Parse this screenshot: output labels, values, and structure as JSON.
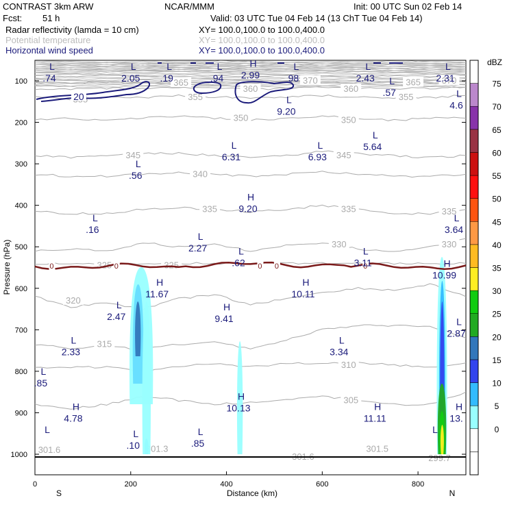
{
  "header": {
    "model": "CONTRAST  3km ARW",
    "org": "NCAR/MMM",
    "init": "Init: 00 UTC Sun 02 Feb 14",
    "fcst_label": "Fcst:",
    "fcst_value": "51 h",
    "valid": "Valid: 03 UTC Tue 04 Feb 14 (13 ChT Tue 04 Feb 14)",
    "fields": [
      {
        "name": "Radar reflectivity (lamda = 10 cm)",
        "xy": "XY= 100.0,100.0 to 100.0,400.0",
        "color": "#000000"
      },
      {
        "name": "Potential temperature",
        "xy": "XY= 100.0,100.0 to 100.0,400.0",
        "color": "#bbbbbb"
      },
      {
        "name": "Horizontal wind speed",
        "xy": "XY= 100.0,100.0 to 100.0,400.0",
        "color": "#1a1a7a"
      }
    ]
  },
  "chart_data": {
    "type": "cross-section",
    "xlabel": "Distance (km)",
    "ylabel": "Pressure (hPa)",
    "xlim": [
      0,
      900
    ],
    "ylim": [
      1000,
      50
    ],
    "x_ticks": [
      "0",
      "200",
      "400",
      "600",
      "800"
    ],
    "x_tick_values": [
      0,
      200,
      400,
      600,
      800
    ],
    "y_ticks": [
      "100",
      "200",
      "300",
      "400",
      "500",
      "600",
      "700",
      "800",
      "900",
      "1000"
    ],
    "y_tick_values": [
      100,
      200,
      300,
      400,
      500,
      600,
      700,
      800,
      900,
      1000
    ],
    "endpoint_labels": {
      "left": "S",
      "right": "N"
    },
    "colorbar": {
      "unit": "dBZ",
      "levels": [
        "0",
        "5",
        "10",
        "15",
        "20",
        "25",
        "30",
        "35",
        "40",
        "45",
        "50",
        "55",
        "60",
        "65",
        "70",
        "75"
      ],
      "colors": [
        "#ffffff",
        "#ffffff",
        "#99ffff",
        "#33bbff",
        "#3344ee",
        "#3377bb",
        "#22aa22",
        "#11cc11",
        "#ffee22",
        "#ffbb22",
        "#ff9944",
        "#ff5511",
        "#ff1111",
        "#cc1111",
        "#993344",
        "#8833aa",
        "#bb88cc",
        "#ffffff"
      ]
    },
    "theta_contours": {
      "color": "#aaaaaa",
      "lines": [
        {
          "label": "320",
          "p": [
            620,
            645,
            635,
            650,
            625,
            615,
            640,
            625,
            610,
            600,
            605,
            590,
            620
          ]
        },
        {
          "label": "315",
          "p": [
            735,
            745,
            740,
            748,
            735,
            730,
            745,
            725,
            700,
            690,
            690,
            690,
            720
          ]
        },
        {
          "label": "310",
          "p": [
            790,
            790,
            790,
            800,
            790,
            780,
            790,
            780,
            780,
            780,
            785,
            790,
            780
          ]
        },
        {
          "label": "305",
          "p": [
            880,
            890,
            880,
            860,
            870,
            880,
            875,
            870,
            860,
            870,
            880,
            880,
            850
          ]
        },
        {
          "label": "325",
          "p": [
            540,
            540,
            540,
            540,
            540,
            540,
            540,
            540,
            540,
            540,
            540,
            540,
            540
          ]
        },
        {
          "label": "330",
          "p": [
            510,
            505,
            510,
            490,
            500,
            495,
            510,
            495,
            490,
            505,
            510,
            500,
            480
          ]
        },
        {
          "label": "335",
          "p": [
            415,
            420,
            420,
            410,
            405,
            410,
            415,
            410,
            400,
            410,
            420,
            420,
            410
          ]
        },
        {
          "label": "340",
          "p": [
            325,
            330,
            330,
            325,
            320,
            325,
            330,
            325,
            320,
            325,
            330,
            330,
            325
          ]
        },
        {
          "label": "345",
          "p": [
            280,
            285,
            280,
            275,
            275,
            280,
            285,
            280,
            270,
            275,
            280,
            285,
            280
          ]
        },
        {
          "label": "350",
          "p": [
            195,
            190,
            195,
            190,
            185,
            190,
            195,
            190,
            185,
            190,
            195,
            190,
            190
          ]
        },
        {
          "label": "355",
          "p": [
            140,
            145,
            140,
            140,
            135,
            140,
            140,
            140,
            135,
            140,
            140,
            140,
            135
          ]
        },
        {
          "label": "360",
          "p": [
            120,
            120,
            118,
            118,
            115,
            118,
            120,
            118,
            115,
            118,
            118,
            118,
            115
          ]
        },
        {
          "label": "365",
          "p": [
            105,
            105,
            104,
            104,
            103,
            104,
            105,
            104,
            103,
            104,
            104,
            104,
            103
          ]
        }
      ],
      "x_nodes": [
        0,
        75,
        150,
        225,
        300,
        375,
        450,
        525,
        600,
        675,
        750,
        825,
        900
      ],
      "labels": [
        {
          "text": "320",
          "x": 80,
          "p": 630
        },
        {
          "text": "315",
          "x": 145,
          "p": 735
        },
        {
          "text": "315",
          "x": 222,
          "p": 755
        },
        {
          "text": "310",
          "x": 655,
          "p": 785
        },
        {
          "text": "305",
          "x": 660,
          "p": 870
        },
        {
          "text": "325",
          "x": 145,
          "p": 545
        },
        {
          "text": "325",
          "x": 285,
          "p": 545
        },
        {
          "text": "330",
          "x": 635,
          "p": 495
        },
        {
          "text": "330",
          "x": 865,
          "p": 495
        },
        {
          "text": "335",
          "x": 365,
          "p": 410
        },
        {
          "text": "335",
          "x": 655,
          "p": 410
        },
        {
          "text": "335",
          "x": 865,
          "p": 415
        },
        {
          "text": "340",
          "x": 345,
          "p": 325
        },
        {
          "text": "345",
          "x": 205,
          "p": 280
        },
        {
          "text": "345",
          "x": 645,
          "p": 280
        },
        {
          "text": "350",
          "x": 430,
          "p": 190
        },
        {
          "text": "350",
          "x": 655,
          "p": 195
        },
        {
          "text": "355",
          "x": 95,
          "p": 145
        },
        {
          "text": "355",
          "x": 335,
          "p": 140
        },
        {
          "text": "355",
          "x": 775,
          "p": 140
        },
        {
          "text": "360",
          "x": 450,
          "p": 120
        },
        {
          "text": "360",
          "x": 660,
          "p": 120
        },
        {
          "text": "365",
          "x": 305,
          "p": 105
        },
        {
          "text": "365",
          "x": 790,
          "p": 104
        },
        {
          "text": "370",
          "x": 575,
          "p": 100
        },
        {
          "text": "370",
          "x": 865,
          "p": 100
        },
        {
          "text": "301.6",
          "x": 30,
          "p": 990
        },
        {
          "text": "301.3",
          "x": 255,
          "p": 988
        },
        {
          "text": "301.6",
          "x": 560,
          "p": 1007
        },
        {
          "text": "301.5",
          "x": 715,
          "p": 988
        },
        {
          "text": "299.7",
          "x": 845,
          "p": 1010
        }
      ]
    },
    "freezing_level": {
      "label": "0",
      "p": 545,
      "color": "#7a1a1a",
      "label_x": [
        35,
        170,
        470,
        505,
        690
      ]
    },
    "wind_contours": {
      "color": "#1a1a7a",
      "label": "20",
      "labelled": {
        "x": 90,
        "p": 140
      }
    },
    "wind_extrema": [
      {
        "type": "L",
        "value": ".74",
        "x": 30,
        "p": 85
      },
      {
        "type": "L",
        "value": "2.05",
        "x": 200,
        "p": 85
      },
      {
        "type": "L",
        "value": ".19",
        "x": 275,
        "p": 85
      },
      {
        "type": "L",
        "value": ".94",
        "x": 380,
        "p": 85
      },
      {
        "type": "H",
        "value": "2.99",
        "x": 450,
        "p": 78
      },
      {
        "type": "L",
        "value": "98",
        "x": 540,
        "p": 85
      },
      {
        "type": "L",
        "value": "2.43",
        "x": 690,
        "p": 85
      },
      {
        "type": "L",
        "value": "2.31",
        "x": 857,
        "p": 85
      },
      {
        "type": "L",
        "value": ".57",
        "x": 740,
        "p": 120
      },
      {
        "type": "L",
        "value": "4.6",
        "x": 880,
        "p": 150
      },
      {
        "type": "L",
        "value": "9.20",
        "x": 525,
        "p": 165
      },
      {
        "type": "L",
        "value": "6.31",
        "x": 410,
        "p": 275
      },
      {
        "type": "L",
        "value": "6.93",
        "x": 590,
        "p": 275
      },
      {
        "type": "L",
        "value": "5.64",
        "x": 705,
        "p": 250
      },
      {
        "type": "L",
        "value": ".56",
        "x": 210,
        "p": 320
      },
      {
        "type": "H",
        "value": "9.20",
        "x": 445,
        "p": 400
      },
      {
        "type": "L",
        "value": ".16",
        "x": 120,
        "p": 450
      },
      {
        "type": "L",
        "value": "3.64",
        "x": 875,
        "p": 450
      },
      {
        "type": "L",
        "value": "2.27",
        "x": 340,
        "p": 495
      },
      {
        "type": "L",
        "value": ".62",
        "x": 425,
        "p": 530
      },
      {
        "type": "L",
        "value": "3.11",
        "x": 685,
        "p": 530
      },
      {
        "type": "H",
        "value": "10.99",
        "x": 855,
        "p": 560
      },
      {
        "type": "H",
        "value": "11.67",
        "x": 255,
        "p": 605
      },
      {
        "type": "H",
        "value": "10.11",
        "x": 560,
        "p": 605
      },
      {
        "type": "L",
        "value": "2.47",
        "x": 170,
        "p": 660
      },
      {
        "type": "H",
        "value": "9.41",
        "x": 395,
        "p": 665
      },
      {
        "type": "L",
        "value": "2.87",
        "x": 880,
        "p": 700
      },
      {
        "type": "L",
        "value": "2.33",
        "x": 75,
        "p": 745
      },
      {
        "type": "L",
        "value": "3.34",
        "x": 635,
        "p": 745
      },
      {
        "type": "L",
        "value": ".85",
        "x": 12,
        "p": 820
      },
      {
        "type": "H",
        "value": "4.78",
        "x": 80,
        "p": 905
      },
      {
        "type": "H",
        "value": "10.13",
        "x": 425,
        "p": 880
      },
      {
        "type": "H",
        "value": "11.11",
        "x": 710,
        "p": 905
      },
      {
        "type": "H",
        "value": "13.",
        "x": 880,
        "p": 905
      },
      {
        "type": "L",
        "value": ".10",
        "x": 205,
        "p": 970
      },
      {
        "type": "L",
        "value": ".85",
        "x": 340,
        "p": 965
      },
      {
        "type": "L",
        "value": "",
        "x": 20,
        "p": 960
      },
      {
        "type": "L",
        "value": "",
        "x": 830,
        "p": 960
      }
    ]
  }
}
